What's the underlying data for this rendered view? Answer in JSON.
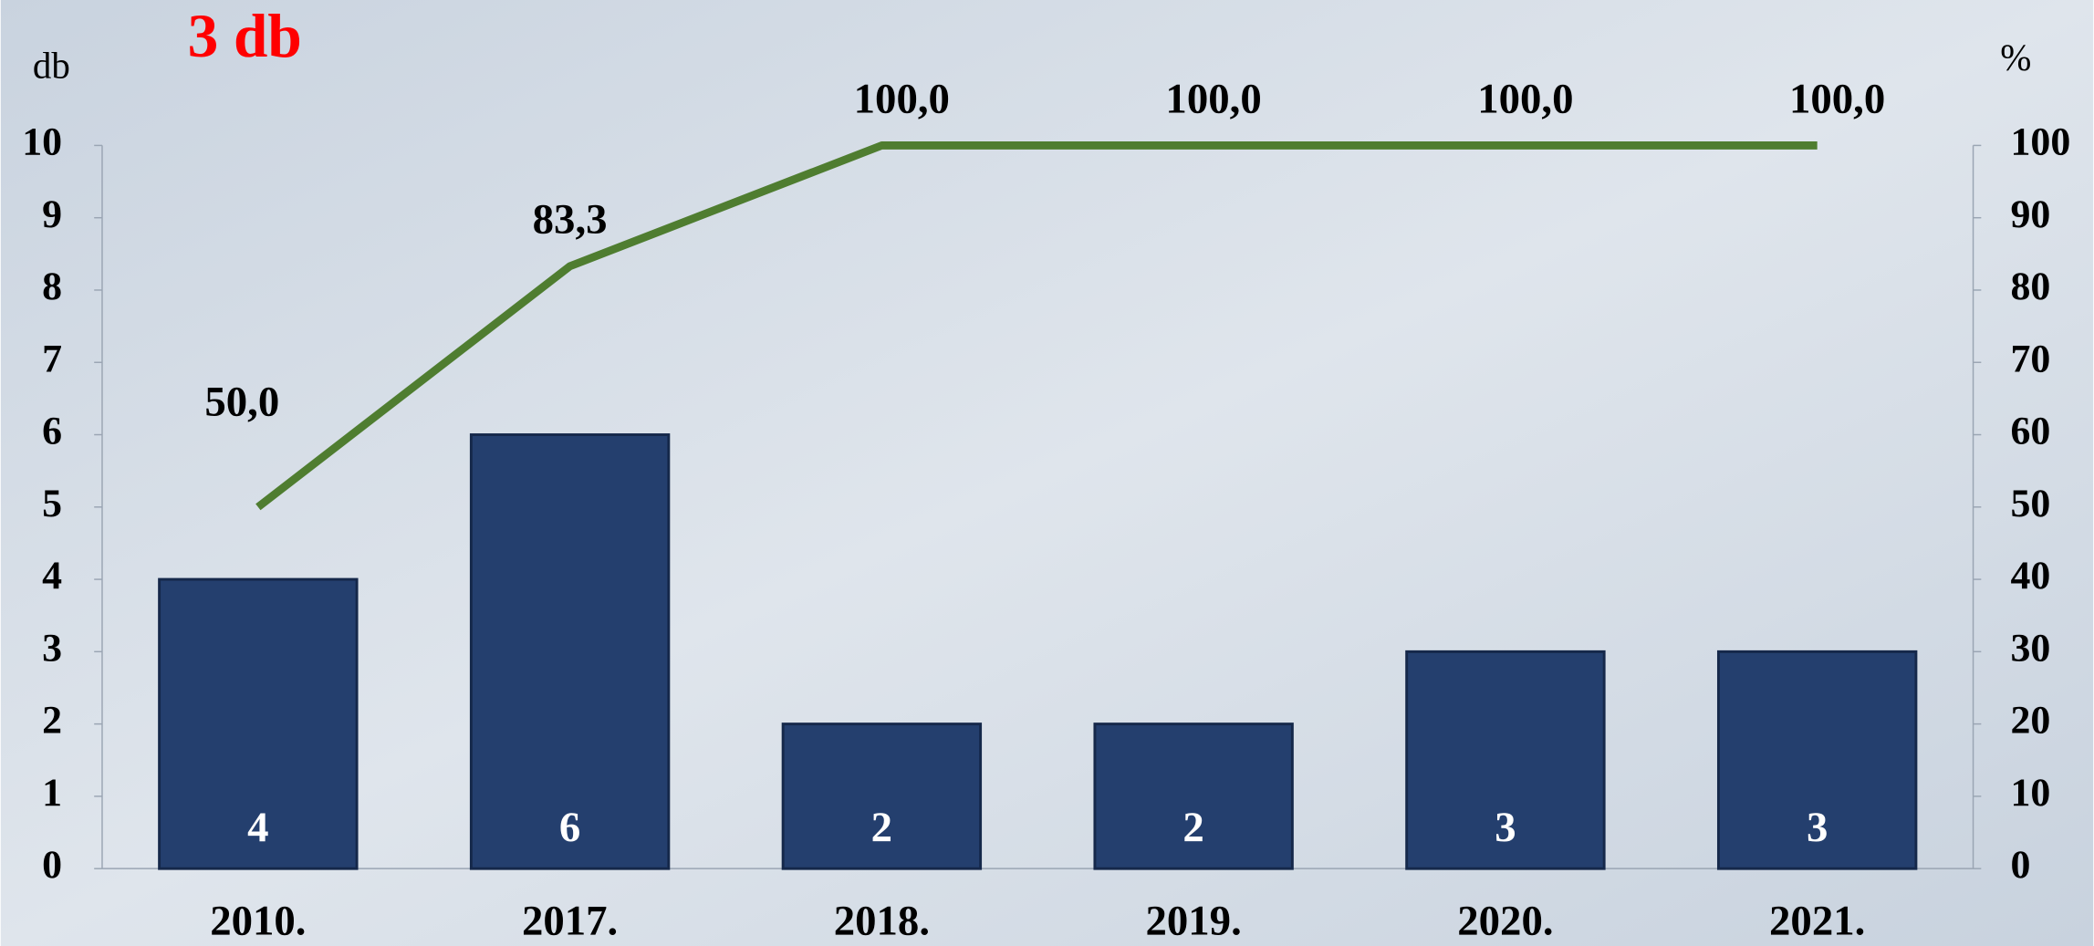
{
  "chart_data": {
    "type": "bar",
    "title": "3 db",
    "y_label": "db",
    "y2_label": "%",
    "categories": [
      "2010.",
      "2017.",
      "2018.",
      "2019.",
      "2020.",
      "2021."
    ],
    "series": [
      {
        "type": "bar",
        "color": "#243f6e",
        "values": [
          4,
          6,
          2,
          2,
          3,
          3
        ]
      },
      {
        "type": "line",
        "axis": "y2",
        "color": "#4f7d30",
        "values": [
          50,
          83.3,
          100,
          100,
          100,
          100
        ],
        "value_labels": [
          "50,0",
          "83,3",
          "100,0",
          "100,0",
          "100,0",
          "100,0"
        ]
      }
    ],
    "ylim": [
      0,
      10
    ],
    "yticks": [
      0,
      1,
      2,
      3,
      4,
      5,
      6,
      7,
      8,
      9,
      10
    ],
    "y2lim": [
      0,
      100
    ],
    "y2ticks": [
      0,
      10,
      20,
      30,
      40,
      50,
      60,
      70,
      80,
      90,
      100
    ],
    "title_color": "#ff0000"
  }
}
